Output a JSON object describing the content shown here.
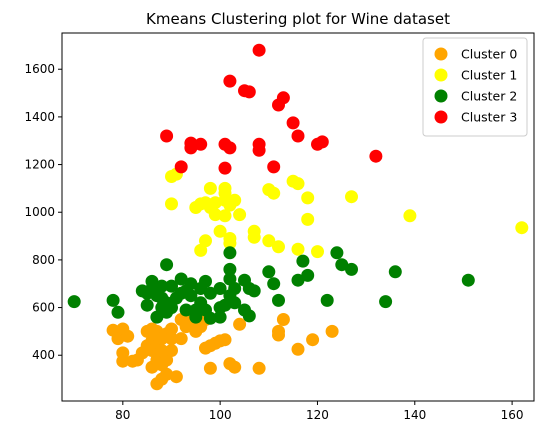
{
  "chart_data": {
    "type": "scatter",
    "title": "Kmeans Clustering plot for Wine dataset",
    "xlabel": "",
    "ylabel": "",
    "xlim": [
      67.5,
      164.5
    ],
    "ylim": [
      208,
      1752
    ],
    "xticks": [
      80,
      100,
      120,
      140,
      160
    ],
    "yticks": [
      400,
      600,
      800,
      1000,
      1200,
      1400,
      1600
    ],
    "grid": false,
    "legend_position": "top-right",
    "series": [
      {
        "name": "Cluster 0",
        "color": "#ffa500",
        "points": [
          [
            78,
            505
          ],
          [
            79,
            470
          ],
          [
            80,
            510
          ],
          [
            80,
            410
          ],
          [
            80,
            375
          ],
          [
            81,
            480
          ],
          [
            82,
            375
          ],
          [
            83,
            380
          ],
          [
            84,
            410
          ],
          [
            85,
            500
          ],
          [
            85,
            440
          ],
          [
            86,
            460
          ],
          [
            86,
            350
          ],
          [
            86,
            420
          ],
          [
            86,
            510
          ],
          [
            87,
            280
          ],
          [
            87,
            380
          ],
          [
            87,
            440
          ],
          [
            87,
            500
          ],
          [
            88,
            470
          ],
          [
            88,
            420
          ],
          [
            88,
            360
          ],
          [
            88,
            300
          ],
          [
            89,
            490
          ],
          [
            89,
            380
          ],
          [
            89,
            320
          ],
          [
            90,
            470
          ],
          [
            90,
            420
          ],
          [
            90,
            510
          ],
          [
            91,
            310
          ],
          [
            92,
            550
          ],
          [
            92,
            470
          ],
          [
            93,
            520
          ],
          [
            94,
            540
          ],
          [
            95,
            500
          ],
          [
            96,
            520
          ],
          [
            97,
            430
          ],
          [
            97,
            550
          ],
          [
            98,
            440
          ],
          [
            98,
            345
          ],
          [
            99,
            450
          ],
          [
            100,
            460
          ],
          [
            101,
            465
          ],
          [
            102,
            365
          ],
          [
            103,
            350
          ],
          [
            104,
            530
          ],
          [
            108,
            345
          ],
          [
            112,
            485
          ],
          [
            112,
            500
          ],
          [
            113,
            550
          ],
          [
            116,
            425
          ],
          [
            119,
            465
          ],
          [
            123,
            500
          ]
        ]
      },
      {
        "name": "Cluster 1",
        "color": "#ffff00",
        "points": [
          [
            90,
            1035
          ],
          [
            90,
            1150
          ],
          [
            91,
            1160
          ],
          [
            95,
            1020
          ],
          [
            96,
            840
          ],
          [
            96,
            1035
          ],
          [
            97,
            880
          ],
          [
            97,
            1040
          ],
          [
            98,
            1020
          ],
          [
            98,
            1100
          ],
          [
            99,
            1040
          ],
          [
            99,
            990
          ],
          [
            100,
            920
          ],
          [
            101,
            1080
          ],
          [
            101,
            1100
          ],
          [
            101,
            985
          ],
          [
            101,
            1050
          ],
          [
            102,
            890
          ],
          [
            102,
            1030
          ],
          [
            102,
            870
          ],
          [
            103,
            1050
          ],
          [
            104,
            990
          ],
          [
            107,
            920
          ],
          [
            107,
            895
          ],
          [
            110,
            880
          ],
          [
            110,
            1095
          ],
          [
            111,
            1080
          ],
          [
            112,
            855
          ],
          [
            115,
            1130
          ],
          [
            116,
            1120
          ],
          [
            116,
            845
          ],
          [
            118,
            970
          ],
          [
            118,
            1060
          ],
          [
            120,
            835
          ],
          [
            127,
            1065
          ],
          [
            139,
            985
          ],
          [
            162,
            935
          ]
        ]
      },
      {
        "name": "Cluster 2",
        "color": "#008000",
        "points": [
          [
            70,
            625
          ],
          [
            78,
            630
          ],
          [
            79,
            580
          ],
          [
            84,
            670
          ],
          [
            85,
            610
          ],
          [
            85,
            660
          ],
          [
            86,
            710
          ],
          [
            86,
            680
          ],
          [
            87,
            560
          ],
          [
            87,
            650
          ],
          [
            88,
            690
          ],
          [
            88,
            600
          ],
          [
            88,
            640
          ],
          [
            89,
            780
          ],
          [
            89,
            620
          ],
          [
            89,
            580
          ],
          [
            90,
            600
          ],
          [
            90,
            690
          ],
          [
            91,
            640
          ],
          [
            92,
            720
          ],
          [
            92,
            660
          ],
          [
            93,
            590
          ],
          [
            93,
            670
          ],
          [
            94,
            700
          ],
          [
            94,
            650
          ],
          [
            95,
            590
          ],
          [
            95,
            560
          ],
          [
            96,
            620
          ],
          [
            96,
            680
          ],
          [
            97,
            710
          ],
          [
            97,
            590
          ],
          [
            98,
            660
          ],
          [
            98,
            555
          ],
          [
            100,
            560
          ],
          [
            100,
            600
          ],
          [
            100,
            680
          ],
          [
            101,
            610
          ],
          [
            102,
            720
          ],
          [
            102,
            760
          ],
          [
            102,
            830
          ],
          [
            102,
            650
          ],
          [
            103,
            620
          ],
          [
            103,
            680
          ],
          [
            105,
            715
          ],
          [
            105,
            590
          ],
          [
            106,
            565
          ],
          [
            106,
            680
          ],
          [
            107,
            670
          ],
          [
            110,
            750
          ],
          [
            111,
            700
          ],
          [
            112,
            630
          ],
          [
            116,
            715
          ],
          [
            117,
            795
          ],
          [
            118,
            735
          ],
          [
            122,
            630
          ],
          [
            124,
            830
          ],
          [
            125,
            780
          ],
          [
            127,
            760
          ],
          [
            134,
            625
          ],
          [
            136,
            750
          ],
          [
            151,
            715
          ]
        ]
      },
      {
        "name": "Cluster 3",
        "color": "#ff0000",
        "points": [
          [
            89,
            1320
          ],
          [
            92,
            1190
          ],
          [
            94,
            1290
          ],
          [
            94,
            1270
          ],
          [
            96,
            1285
          ],
          [
            101,
            1285
          ],
          [
            101,
            1185
          ],
          [
            102,
            1270
          ],
          [
            102,
            1550
          ],
          [
            105,
            1510
          ],
          [
            106,
            1505
          ],
          [
            108,
            1680
          ],
          [
            108,
            1285
          ],
          [
            108,
            1260
          ],
          [
            111,
            1190
          ],
          [
            112,
            1450
          ],
          [
            113,
            1480
          ],
          [
            115,
            1375
          ],
          [
            116,
            1320
          ],
          [
            120,
            1285
          ],
          [
            121,
            1295
          ],
          [
            132,
            1235
          ]
        ]
      }
    ]
  }
}
